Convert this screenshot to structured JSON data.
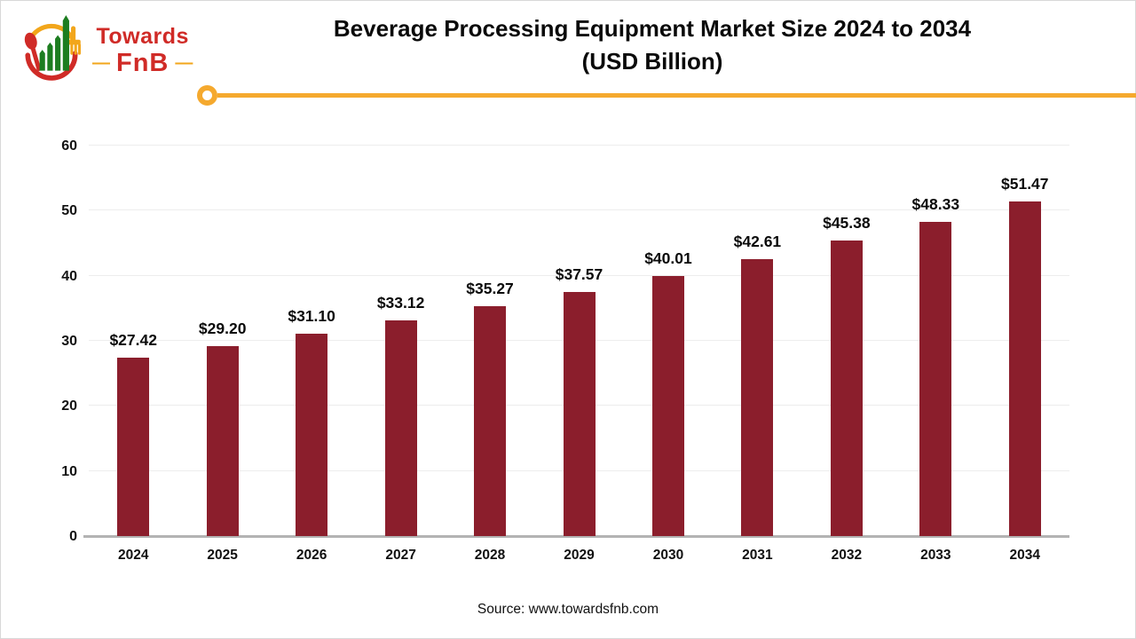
{
  "brand": {
    "name_top": "Towards",
    "name_bottom": "FnB",
    "dash": "—"
  },
  "header": {
    "title_line1": "Beverage Processing Equipment Market Size 2024 to 2034",
    "title_line2": "(USD Billion)"
  },
  "footer": {
    "source_text": "Source: www.towardsfnb.com"
  },
  "colors": {
    "bar": "#8B1E2C",
    "accent": "#F5A92E",
    "grid": "#EDEDED",
    "axis": "#B3B3B3",
    "logo_red": "#D02B27",
    "logo_green": "#1D7D20",
    "logo_yellow": "#F2A61B"
  },
  "chart_data": {
    "type": "bar",
    "title": "Beverage Processing Equipment Market Size 2024 to 2034 (USD Billion)",
    "categories": [
      "2024",
      "2025",
      "2026",
      "2027",
      "2028",
      "2029",
      "2030",
      "2031",
      "2032",
      "2033",
      "2034"
    ],
    "values": [
      27.42,
      29.2,
      31.1,
      33.12,
      35.27,
      37.57,
      40.01,
      42.61,
      45.38,
      48.33,
      51.47
    ],
    "value_labels": [
      "$27.42",
      "$29.20",
      "$31.10",
      "$33.12",
      "$35.27",
      "$37.57",
      "$40.01",
      "$42.61",
      "$45.38",
      "$48.33",
      "$51.47"
    ],
    "xlabel": "",
    "ylabel": "",
    "ylim": [
      0,
      60
    ],
    "yticks": [
      0,
      10,
      20,
      30,
      40,
      50,
      60
    ],
    "grid": true,
    "legend": "none"
  }
}
